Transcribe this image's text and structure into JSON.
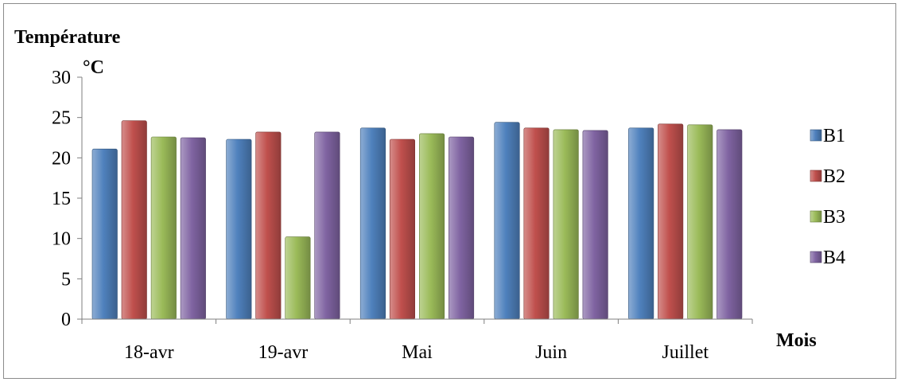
{
  "chart_data": {
    "type": "bar",
    "ylabel": "Température",
    "yunit": "°C",
    "xlabel": "Mois",
    "categories": [
      "18-avr",
      "19-avr",
      "Mai",
      "Juin",
      "Juillet"
    ],
    "ylim": [
      0,
      30
    ],
    "yticks": [
      0,
      5,
      10,
      15,
      20,
      25,
      30
    ],
    "grid": false,
    "legend": "right",
    "series": [
      {
        "name": "B1",
        "color": "#4f81bd",
        "values": [
          21.1,
          22.3,
          23.7,
          24.4,
          23.7
        ]
      },
      {
        "name": "B2",
        "color": "#c0504d",
        "values": [
          24.6,
          23.2,
          22.3,
          23.7,
          24.2
        ]
      },
      {
        "name": "B3",
        "color": "#9bbb59",
        "values": [
          22.6,
          10.2,
          23.0,
          23.5,
          24.1
        ]
      },
      {
        "name": "B4",
        "color": "#8064a2",
        "values": [
          22.5,
          23.2,
          22.6,
          23.4,
          23.5
        ]
      }
    ]
  }
}
